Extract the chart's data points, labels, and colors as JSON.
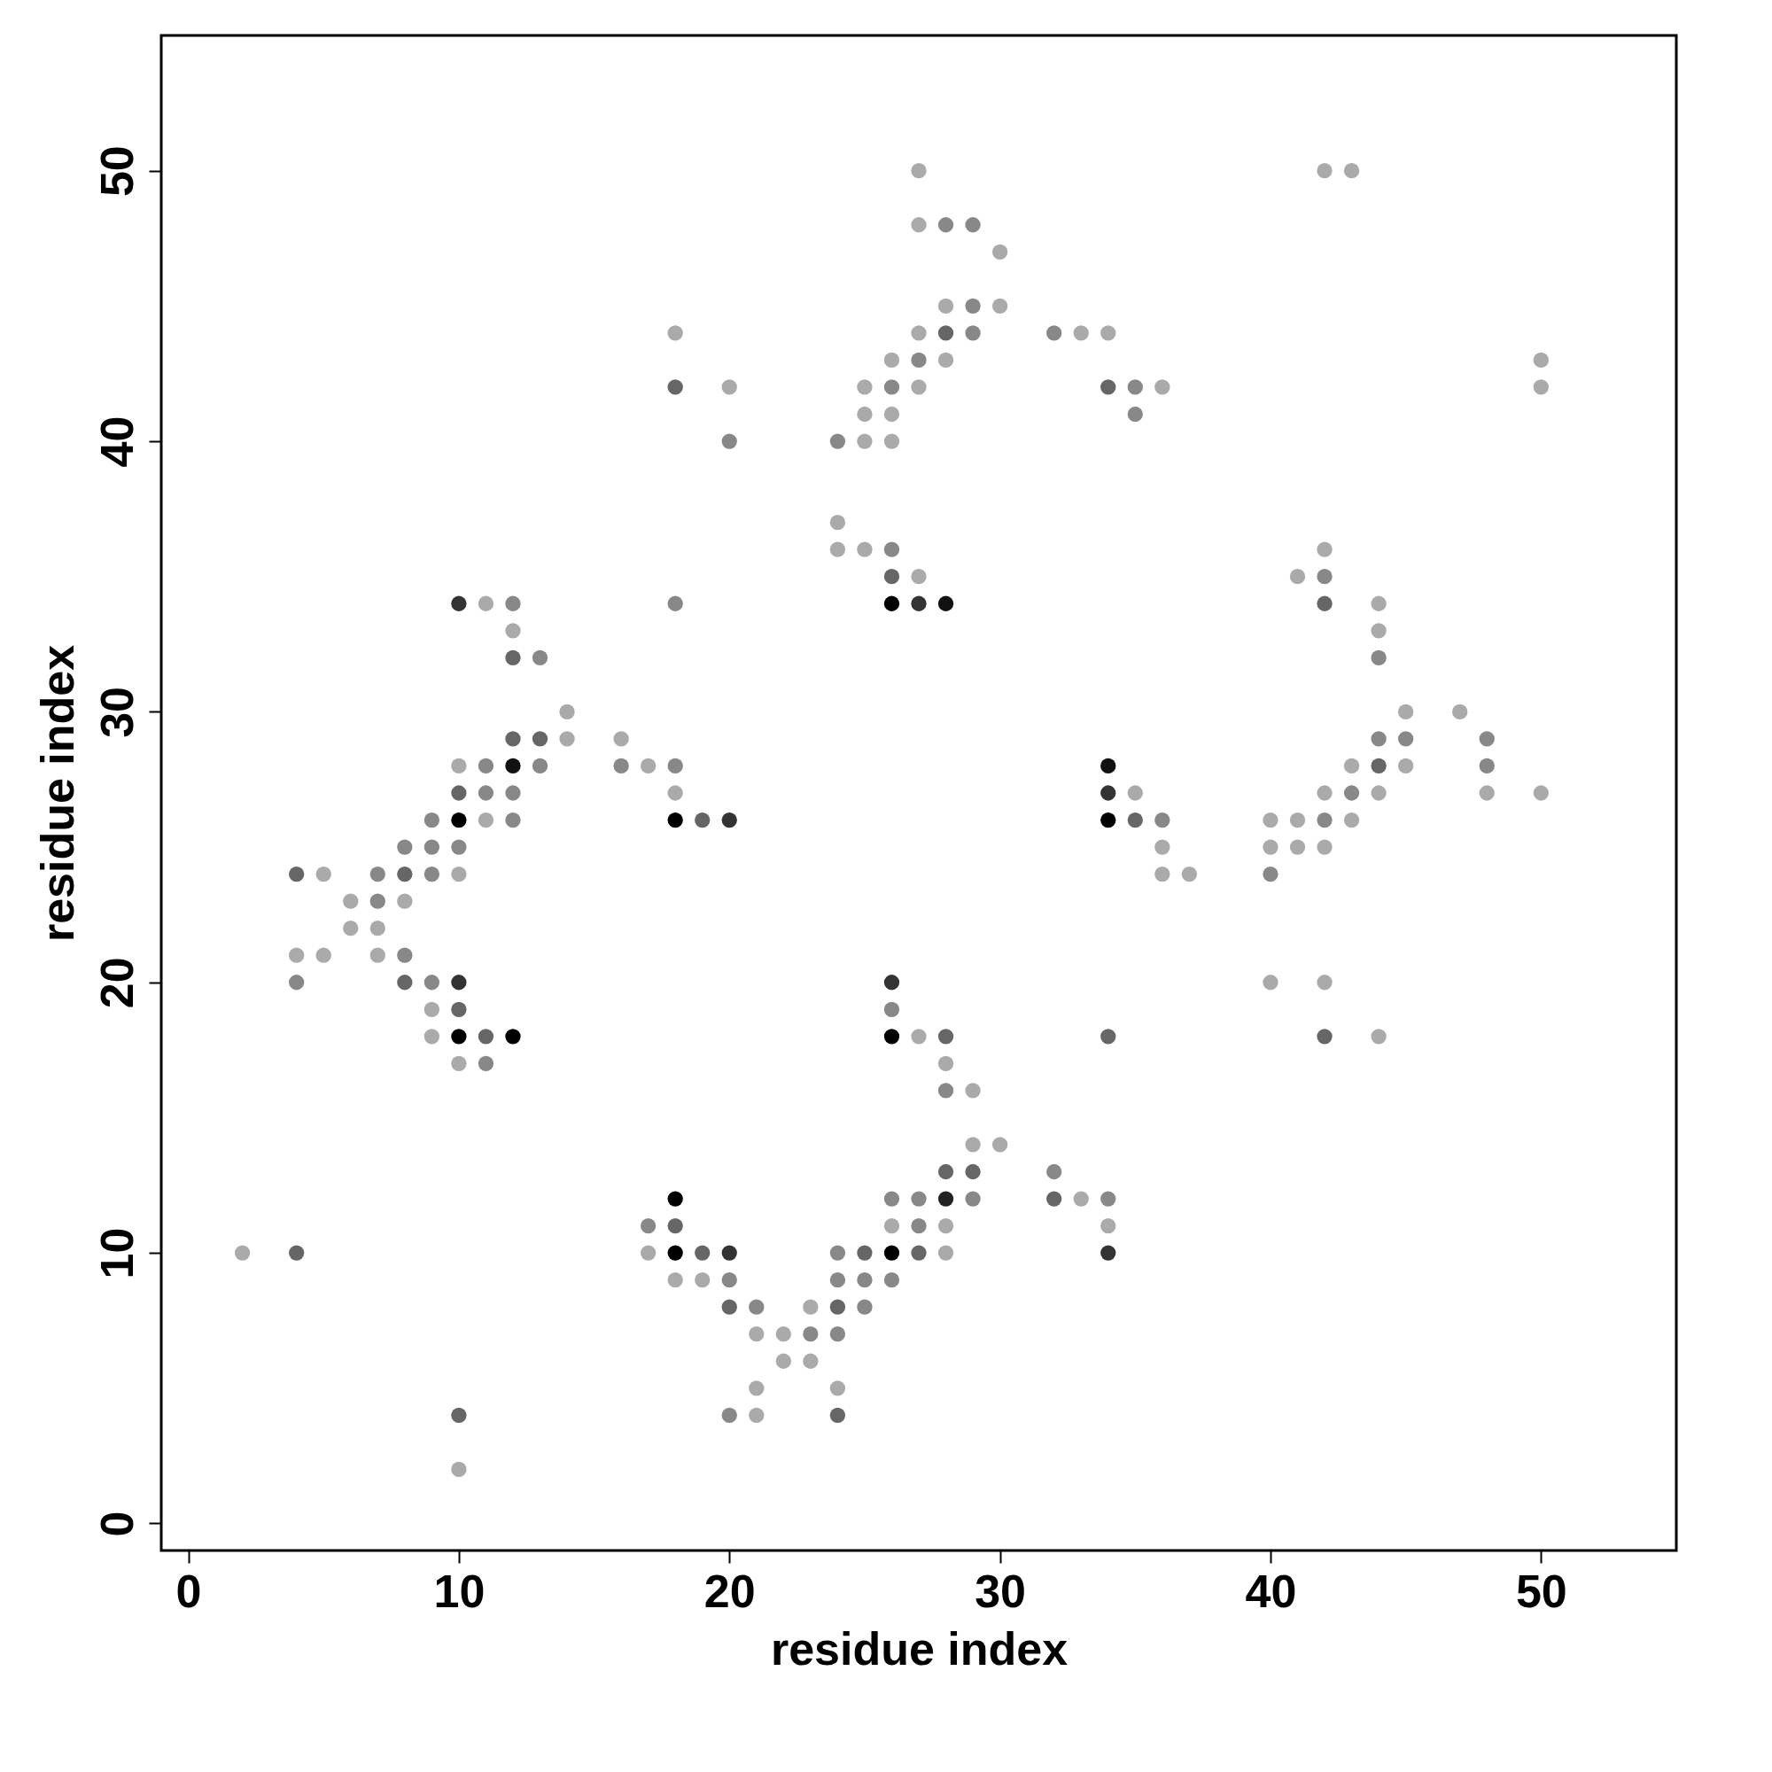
{
  "chart_data": {
    "type": "scatter",
    "xlabel": "residue index",
    "ylabel": "residue index",
    "xlim": [
      -1,
      55
    ],
    "ylim": [
      -1,
      55
    ],
    "xticks": [
      0,
      10,
      20,
      30,
      40,
      50
    ],
    "yticks": [
      0,
      10,
      20,
      30,
      40,
      50
    ],
    "marker": "circle",
    "grid": false,
    "x": [
      27,
      42,
      43,
      27,
      28,
      29,
      30,
      28,
      29,
      30,
      18,
      27,
      28,
      29,
      32,
      33,
      34,
      26,
      27,
      28,
      50,
      18,
      20,
      25,
      26,
      27,
      34,
      35,
      36,
      50,
      25,
      26,
      35,
      20,
      24,
      25,
      26,
      24,
      24,
      25,
      26,
      42,
      26,
      27,
      41,
      42,
      10,
      11,
      12,
      18,
      26,
      27,
      28,
      42,
      44,
      12,
      44,
      12,
      13,
      44,
      14,
      45,
      47,
      12,
      13,
      14,
      16,
      44,
      45,
      48,
      10,
      11,
      12,
      13,
      16,
      17,
      18,
      34,
      43,
      44,
      45,
      48,
      10,
      11,
      12,
      18,
      34,
      35,
      42,
      43,
      44,
      48,
      50,
      9,
      10,
      11,
      12,
      18,
      19,
      20,
      34,
      35,
      36,
      40,
      41,
      42,
      43,
      8,
      9,
      10,
      36,
      40,
      41,
      42,
      4,
      5,
      7,
      8,
      9,
      10,
      36,
      37,
      40,
      6,
      7,
      8,
      6,
      7,
      4,
      5,
      7,
      8,
      4,
      8,
      9,
      10,
      26,
      40,
      42,
      9,
      10,
      26,
      9,
      10,
      11,
      12,
      26,
      27,
      28,
      34,
      42,
      44,
      10,
      11,
      28,
      28,
      29,
      29,
      30,
      28,
      29,
      32,
      18,
      26,
      27,
      28,
      29,
      32,
      33,
      34,
      17,
      18,
      26,
      27,
      28,
      34,
      2,
      4,
      17,
      18,
      19,
      20,
      24,
      25,
      26,
      27,
      28,
      34,
      18,
      19,
      20,
      24,
      25,
      26,
      20,
      21,
      23,
      24,
      25,
      21,
      22,
      23,
      24,
      22,
      23,
      21,
      24,
      10,
      20,
      21,
      24,
      10
    ],
    "values": [
      50,
      50,
      50,
      48,
      48,
      48,
      47,
      45,
      45,
      45,
      44,
      44,
      44,
      44,
      44,
      44,
      44,
      43,
      43,
      43,
      43,
      42,
      42,
      42,
      42,
      42,
      42,
      42,
      42,
      42,
      41,
      41,
      41,
      40,
      40,
      40,
      40,
      37,
      36,
      36,
      36,
      36,
      35,
      35,
      35,
      35,
      34,
      34,
      34,
      34,
      34,
      34,
      34,
      34,
      34,
      33,
      33,
      32,
      32,
      32,
      30,
      30,
      30,
      29,
      29,
      29,
      29,
      29,
      29,
      29,
      28,
      28,
      28,
      28,
      28,
      28,
      28,
      28,
      28,
      28,
      28,
      28,
      27,
      27,
      27,
      27,
      27,
      27,
      27,
      27,
      27,
      27,
      27,
      26,
      26,
      26,
      26,
      26,
      26,
      26,
      26,
      26,
      26,
      26,
      26,
      26,
      26,
      25,
      25,
      25,
      25,
      25,
      25,
      25,
      24,
      24,
      24,
      24,
      24,
      24,
      24,
      24,
      24,
      23,
      23,
      23,
      22,
      22,
      21,
      21,
      21,
      21,
      20,
      20,
      20,
      20,
      20,
      20,
      20,
      19,
      19,
      19,
      18,
      18,
      18,
      18,
      18,
      18,
      18,
      18,
      18,
      18,
      17,
      17,
      17,
      16,
      16,
      14,
      14,
      13,
      13,
      13,
      12,
      12,
      12,
      12,
      12,
      12,
      12,
      12,
      11,
      11,
      11,
      11,
      11,
      11,
      10,
      10,
      10,
      10,
      10,
      10,
      10,
      10,
      10,
      10,
      10,
      10,
      9,
      9,
      9,
      9,
      9,
      9,
      8,
      8,
      8,
      8,
      8,
      7,
      7,
      7,
      7,
      6,
      6,
      5,
      5,
      4,
      4,
      4,
      4,
      2
    ],
    "colors": [
      "#aaaaaa",
      "#aaaaaa",
      "#aaaaaa",
      "#aaaaaa",
      "#888888",
      "#888888",
      "#aaaaaa",
      "#aaaaaa",
      "#888888",
      "#aaaaaa",
      "#aaaaaa",
      "#aaaaaa",
      "#666666",
      "#888888",
      "#888888",
      "#aaaaaa",
      "#aaaaaa",
      "#aaaaaa",
      "#888888",
      "#aaaaaa",
      "#aaaaaa",
      "#666666",
      "#aaaaaa",
      "#aaaaaa",
      "#888888",
      "#aaaaaa",
      "#666666",
      "#888888",
      "#aaaaaa",
      "#aaaaaa",
      "#aaaaaa",
      "#aaaaaa",
      "#888888",
      "#888888",
      "#888888",
      "#aaaaaa",
      "#aaaaaa",
      "#aaaaaa",
      "#aaaaaa",
      "#aaaaaa",
      "#888888",
      "#aaaaaa",
      "#666666",
      "#aaaaaa",
      "#aaaaaa",
      "#888888",
      "#333333",
      "#aaaaaa",
      "#888888",
      "#888888",
      "#000000",
      "#333333",
      "#111111",
      "#666666",
      "#aaaaaa",
      "#aaaaaa",
      "#aaaaaa",
      "#666666",
      "#888888",
      "#888888",
      "#aaaaaa",
      "#aaaaaa",
      "#aaaaaa",
      "#666666",
      "#666666",
      "#aaaaaa",
      "#aaaaaa",
      "#888888",
      "#888888",
      "#888888",
      "#aaaaaa",
      "#888888",
      "#111111",
      "#888888",
      "#888888",
      "#aaaaaa",
      "#888888",
      "#111111",
      "#aaaaaa",
      "#666666",
      "#aaaaaa",
      "#888888",
      "#666666",
      "#888888",
      "#888888",
      "#aaaaaa",
      "#333333",
      "#aaaaaa",
      "#aaaaaa",
      "#888888",
      "#aaaaaa",
      "#aaaaaa",
      "#aaaaaa",
      "#888888",
      "#000000",
      "#aaaaaa",
      "#888888",
      "#000000",
      "#666666",
      "#333333",
      "#000000",
      "#666666",
      "#888888",
      "#aaaaaa",
      "#aaaaaa",
      "#888888",
      "#aaaaaa",
      "#888888",
      "#888888",
      "#888888",
      "#aaaaaa",
      "#aaaaaa",
      "#aaaaaa",
      "#aaaaaa",
      "#666666",
      "#aaaaaa",
      "#888888",
      "#666666",
      "#888888",
      "#aaaaaa",
      "#aaaaaa",
      "#aaaaaa",
      "#888888",
      "#aaaaaa",
      "#888888",
      "#aaaaaa",
      "#aaaaaa",
      "#aaaaaa",
      "#aaaaaa",
      "#aaaaaa",
      "#aaaaaa",
      "#888888",
      "#888888",
      "#666666",
      "#888888",
      "#333333",
      "#333333",
      "#aaaaaa",
      "#aaaaaa",
      "#aaaaaa",
      "#666666",
      "#888888",
      "#aaaaaa",
      "#000000",
      "#666666",
      "#000000",
      "#000000",
      "#aaaaaa",
      "#666666",
      "#666666",
      "#666666",
      "#aaaaaa",
      "#aaaaaa",
      "#888888",
      "#aaaaaa",
      "#888888",
      "#aaaaaa",
      "#aaaaaa",
      "#aaaaaa",
      "#666666",
      "#666666",
      "#888888",
      "#000000",
      "#888888",
      "#888888",
      "#222222",
      "#888888",
      "#666666",
      "#aaaaaa",
      "#888888",
      "#888888",
      "#666666",
      "#aaaaaa",
      "#888888",
      "#aaaaaa",
      "#aaaaaa",
      "#aaaaaa",
      "#666666",
      "#aaaaaa",
      "#000000",
      "#666666",
      "#333333",
      "#888888",
      "#666666",
      "#000000",
      "#666666",
      "#aaaaaa",
      "#333333",
      "#aaaaaa",
      "#aaaaaa",
      "#888888",
      "#888888",
      "#888888",
      "#888888",
      "#666666",
      "#888888",
      "#aaaaaa",
      "#666666",
      "#888888",
      "#aaaaaa",
      "#aaaaaa",
      "#888888",
      "#888888",
      "#aaaaaa",
      "#aaaaaa",
      "#aaaaaa",
      "#aaaaaa",
      "#666666",
      "#888888",
      "#aaaaaa",
      "#666666",
      "#aaaaaa"
    ]
  }
}
